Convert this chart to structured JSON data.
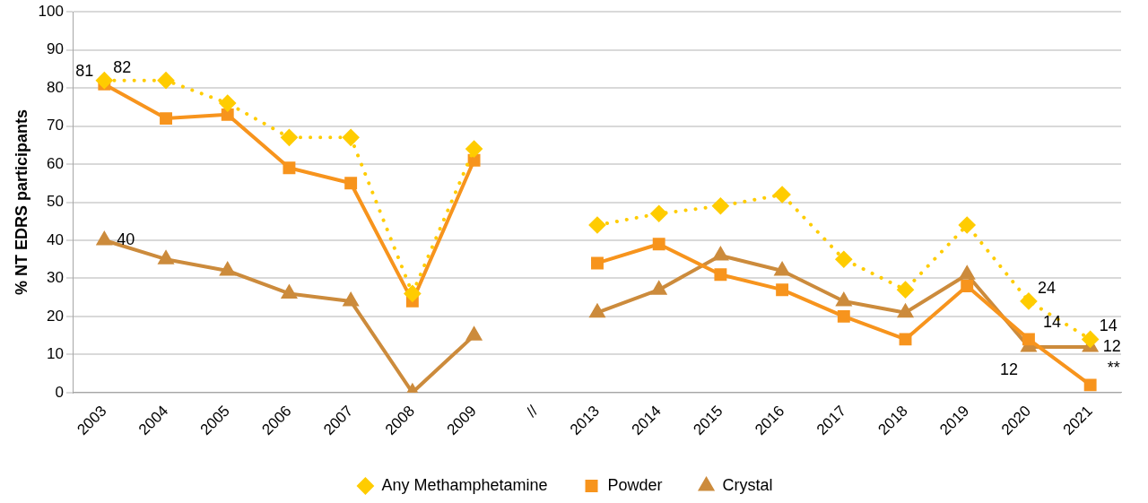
{
  "chart_data": {
    "type": "line",
    "ylabel": "% NT EDRS participants",
    "categories": [
      "2003",
      "2004",
      "2005",
      "2006",
      "2007",
      "2008",
      "2009",
      "//",
      "2013",
      "2014",
      "2015",
      "2016",
      "2017",
      "2018",
      "2019",
      "2020",
      "2021"
    ],
    "series": [
      {
        "name": "Any Methamphetamine",
        "color": "#ffcc00",
        "marker": "diamond",
        "line_style": "dotted",
        "values": [
          82,
          82,
          76,
          67,
          67,
          26,
          64,
          null,
          44,
          47,
          49,
          52,
          35,
          27,
          44,
          24,
          14
        ],
        "value_labels": [
          "82",
          null,
          null,
          null,
          null,
          null,
          null,
          null,
          null,
          null,
          null,
          null,
          null,
          null,
          null,
          "24",
          "14"
        ]
      },
      {
        "name": "Powder",
        "color": "#f7941d",
        "marker": "square",
        "line_style": "solid",
        "values": [
          81,
          72,
          73,
          59,
          55,
          24,
          61,
          null,
          34,
          39,
          31,
          27,
          20,
          14,
          28,
          14,
          2
        ],
        "value_labels": [
          "81",
          null,
          null,
          null,
          null,
          null,
          null,
          null,
          null,
          null,
          null,
          null,
          null,
          null,
          null,
          "14",
          "**"
        ]
      },
      {
        "name": "Crystal",
        "color": "#cc8b3c",
        "marker": "triangle",
        "line_style": "solid",
        "values": [
          40,
          35,
          32,
          26,
          24,
          0,
          15,
          null,
          21,
          27,
          36,
          32,
          24,
          21,
          31,
          12,
          12
        ],
        "value_labels": [
          "40",
          null,
          null,
          null,
          null,
          null,
          null,
          null,
          null,
          null,
          null,
          null,
          null,
          null,
          null,
          "12",
          "12"
        ]
      }
    ],
    "ylim": [
      0,
      100
    ],
    "yticks": [
      0,
      10,
      20,
      30,
      40,
      50,
      60,
      70,
      80,
      90,
      100
    ],
    "grid": "y",
    "legend": "bottom"
  }
}
